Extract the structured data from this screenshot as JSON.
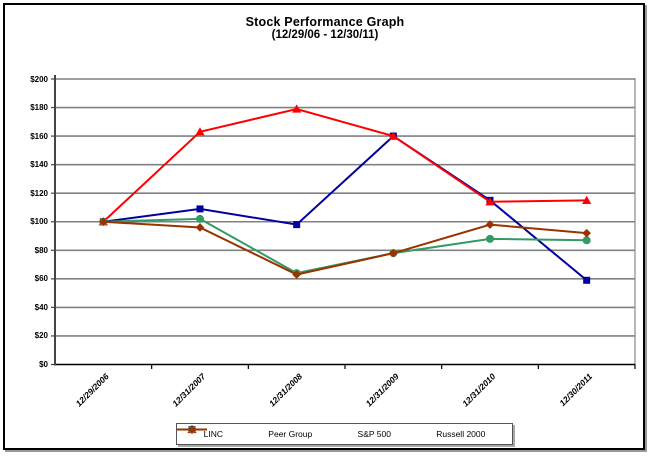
{
  "title": "Stock Performance Graph",
  "subtitle": "(12/29/06 - 12/30/11)",
  "chart_data": {
    "type": "line",
    "title": "Stock Performance Graph",
    "subtitle": "(12/29/06 - 12/30/11)",
    "x_labels": [
      "12/29/2006",
      "12/31/2007",
      "12/31/2008",
      "12/31/2009",
      "12/31/2010",
      "12/30/2011"
    ],
    "ylim": [
      0,
      200
    ],
    "y_tick_values": [
      0,
      20,
      40,
      60,
      80,
      100,
      120,
      140,
      160,
      180,
      200
    ],
    "y_tick_labels": [
      "$0",
      "$20",
      "$40",
      "$60",
      "$80",
      "$100",
      "$120",
      "$140",
      "$160",
      "$180",
      "$200"
    ],
    "grid": true,
    "legend_position": "bottom-center",
    "series": [
      {
        "name": "LINC",
        "color": "#0000A0",
        "marker": "square",
        "values": [
          100,
          109,
          98,
          160,
          115,
          59
        ]
      },
      {
        "name": "Peer Group",
        "color": "#FF0000",
        "marker": "triangle",
        "values": [
          100,
          163,
          179,
          160,
          114,
          115
        ]
      },
      {
        "name": "S&P 500",
        "color": "#339966",
        "marker": "circle",
        "values": [
          100,
          102,
          64,
          78,
          88,
          87
        ]
      },
      {
        "name": "Russell 2000",
        "color": "#993300",
        "marker": "diamond",
        "values": [
          100,
          96,
          63,
          78,
          98,
          92
        ]
      }
    ],
    "axis_colors": {
      "gridline": "#808080",
      "axis_line": "#444444",
      "zero_line": "#000000"
    }
  }
}
